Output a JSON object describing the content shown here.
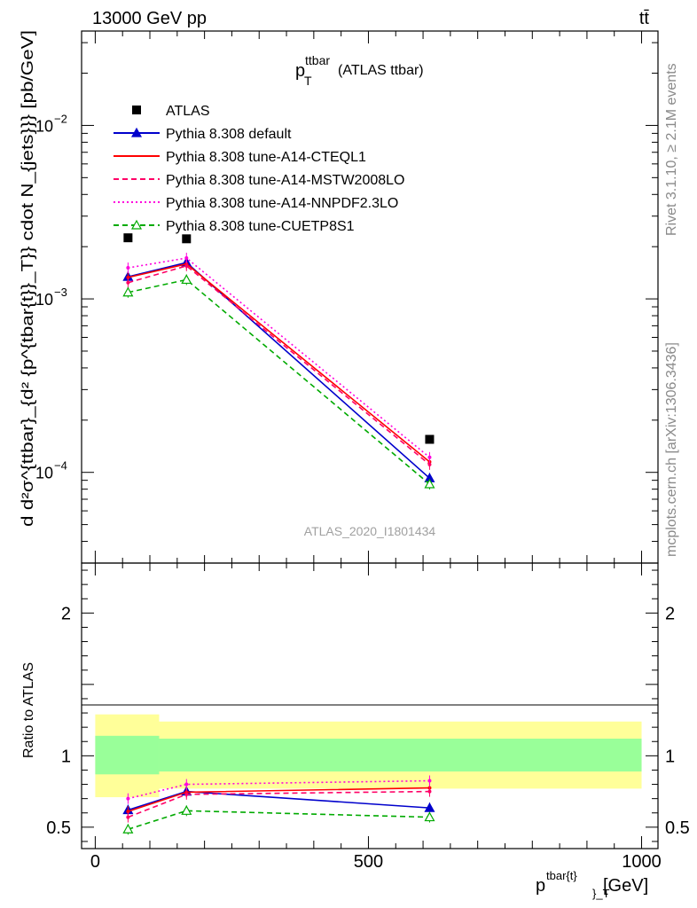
{
  "header": {
    "left": "13000 GeV pp",
    "right": "tt̄"
  },
  "side_text": {
    "upper": "Rivet 3.1.10, ≥ 2.1M events",
    "lower": "mcplots.cern.ch [arXiv:1306.3436]"
  },
  "watermark": "ATLAS_2020_I1801434",
  "plot_title": {
    "main": "p",
    "sup": "ttbar",
    "sub": "T",
    "suffix": " (ATLAS ttbar)"
  },
  "ylabel_main": "d d²σ^{ttbar}_{d² {p^{tbar{t}}_T}} cdot N_{jets}}} [pb/GeV]",
  "ylabel_ratio": "Ratio to ATLAS",
  "xlabel": {
    "main": "p",
    "sup": "tbar{t}",
    "sub": "}_T",
    "unit": " [GeV]"
  },
  "legend": [
    {
      "label": "ATLAS",
      "color": "#000000",
      "marker": "square",
      "dash": "none"
    },
    {
      "label": "Pythia 8.308 default",
      "color": "#0000cc",
      "marker": "triangle",
      "dash": "solid"
    },
    {
      "label": "Pythia 8.308 tune-A14-CTEQL1",
      "color": "#ff0000",
      "marker": "none",
      "dash": "solid"
    },
    {
      "label": "Pythia 8.308 tune-A14-MSTW2008LO",
      "color": "#ff0066",
      "marker": "none",
      "dash": "dashed"
    },
    {
      "label": "Pythia 8.308 tune-A14-NNPDF2.3LO",
      "color": "#ff00dd",
      "marker": "none",
      "dash": "dotted"
    },
    {
      "label": "Pythia 8.308 tune-CUETP8S1",
      "color": "#00aa00",
      "marker": "open-triangle",
      "dash": "dashed"
    }
  ],
  "chart_data": {
    "type": "line",
    "main": {
      "yscale": "log",
      "ylim": [
        3e-05,
        0.035
      ],
      "yticks": [
        {
          "value": 0.01,
          "label": "10",
          "exp": "−2"
        },
        {
          "value": 0.001,
          "label": "10",
          "exp": "−3"
        },
        {
          "value": 0.0001,
          "label": "10",
          "exp": "−4"
        }
      ],
      "data_x": [
        60,
        167,
        612
      ],
      "data_y": [
        0.00225,
        0.00222,
        0.000155
      ],
      "series": [
        {
          "name": "Pythia 8.308 default",
          "y": [
            0.00134,
            0.00162,
            9.25e-05
          ]
        },
        {
          "name": "Pythia 8.308 tune-A14-CTEQL1",
          "y": [
            0.00133,
            0.00159,
            0.000115
          ]
        },
        {
          "name": "Pythia 8.308 tune-A14-MSTW2008LO",
          "y": [
            0.00124,
            0.00155,
            0.000111
          ]
        },
        {
          "name": "Pythia 8.308 tune-A14-NNPDF2.3LO",
          "y": [
            0.00151,
            0.00172,
            0.000122
          ]
        },
        {
          "name": "Pythia 8.308 tune-CUETP8S1",
          "y": [
            0.00109,
            0.00129,
            8.55e-05
          ]
        }
      ]
    },
    "ratio": {
      "ylim": [
        0.35,
        2.35
      ],
      "yticks": [
        {
          "value": 0.5,
          "label": "0.5"
        },
        {
          "value": 1,
          "label": "1"
        },
        {
          "value": 2,
          "label": "2"
        }
      ],
      "band_bins": [
        [
          0,
          117,
          0.71,
          1.29,
          0.87,
          1.14
        ],
        [
          117,
          1000,
          0.77,
          1.24,
          0.89,
          1.12
        ]
      ],
      "x": [
        60,
        167,
        612
      ],
      "series": [
        {
          "name": "Pythia 8.308 default",
          "y": [
            0.62,
            0.75,
            0.635
          ]
        },
        {
          "name": "Pythia 8.308 tune-A14-CTEQL1",
          "y": [
            0.61,
            0.745,
            0.775
          ]
        },
        {
          "name": "Pythia 8.308 tune-A14-MSTW2008LO",
          "y": [
            0.57,
            0.73,
            0.75
          ]
        },
        {
          "name": "Pythia 8.308 tune-A14-NNPDF2.3LO",
          "y": [
            0.7,
            0.8,
            0.825
          ]
        },
        {
          "name": "Pythia 8.308 tune-CUETP8S1",
          "y": [
            0.485,
            0.615,
            0.57
          ]
        }
      ]
    },
    "xlim": [
      -25,
      1030
    ],
    "xticks": [
      {
        "value": 0,
        "label": "0"
      },
      {
        "value": 500,
        "label": "500"
      },
      {
        "value": 1000,
        "label": "1000"
      }
    ]
  }
}
